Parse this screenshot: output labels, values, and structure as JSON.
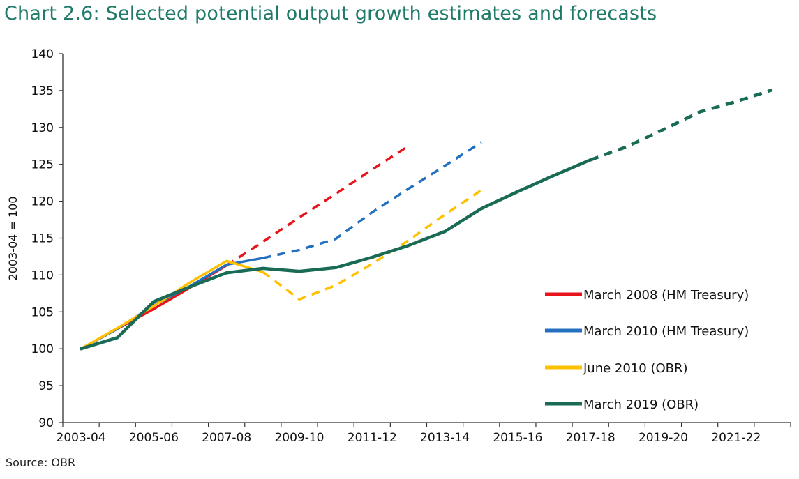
{
  "title": "Chart 2.6: Selected potential output growth estimates and forecasts",
  "source": "Source: OBR",
  "chart_data": {
    "type": "line",
    "title": "Chart 2.6: Selected potential output growth estimates and forecasts",
    "ylabel": "2003-04 = 100",
    "xlabel": "",
    "ylim": [
      90,
      140
    ],
    "yticks": [
      90,
      95,
      100,
      105,
      110,
      115,
      120,
      125,
      130,
      135,
      140
    ],
    "x_categories": [
      "2003-04",
      "2004-05",
      "2005-06",
      "2006-07",
      "2007-08",
      "2008-09",
      "2009-10",
      "2010-11",
      "2011-12",
      "2012-13",
      "2013-14",
      "2014-15",
      "2015-16",
      "2016-17",
      "2017-18",
      "2018-19",
      "2019-20",
      "2020-21",
      "2021-22",
      "2022-23"
    ],
    "x_tick_labels": [
      "2003-04",
      "2005-06",
      "2007-08",
      "2009-10",
      "2011-12",
      "2013-14",
      "2015-16",
      "2017-18",
      "2019-20",
      "2021-22"
    ],
    "legend_position": "bottom-right",
    "grid": false,
    "series": [
      {
        "name": "March 2008 (HM Treasury)",
        "color": "#e8141c",
        "solid": {
          "x": [
            "2003-04",
            "2004-05",
            "2005-06",
            "2006-07",
            "2007-08"
          ],
          "y": [
            100,
            102.7,
            105.4,
            108.3,
            111.3
          ]
        },
        "dashed": {
          "x": [
            "2007-08",
            "2008-09",
            "2009-10",
            "2010-11",
            "2011-12",
            "2012-13"
          ],
          "y": [
            111.3,
            114.5,
            117.8,
            121.0,
            124.3,
            127.5
          ]
        }
      },
      {
        "name": "March 2010 (HM Treasury)",
        "color": "#2470c0",
        "solid": {
          "x": [
            "2003-04",
            "2004-05",
            "2005-06",
            "2006-07",
            "2007-08",
            "2008-09"
          ],
          "y": [
            100,
            102.7,
            105.9,
            108.5,
            111.4,
            112.3
          ]
        },
        "dashed": {
          "x": [
            "2008-09",
            "2009-10",
            "2010-11",
            "2011-12",
            "2012-13",
            "2013-14",
            "2014-15"
          ],
          "y": [
            112.3,
            113.4,
            114.9,
            118.5,
            121.7,
            124.8,
            128.0
          ]
        }
      },
      {
        "name": "June 2010 (OBR)",
        "color": "#ffc000",
        "solid": {
          "x": [
            "2003-04",
            "2004-05",
            "2005-06",
            "2006-07",
            "2007-08",
            "2008-09"
          ],
          "y": [
            100,
            102.8,
            105.8,
            109.0,
            111.9,
            110.4
          ]
        },
        "dashed": {
          "x": [
            "2008-09",
            "2009-10",
            "2010-11",
            "2011-12",
            "2012-13",
            "2013-14",
            "2014-15"
          ],
          "y": [
            110.4,
            106.7,
            108.6,
            111.5,
            114.7,
            118.2,
            121.5
          ]
        }
      },
      {
        "name": "March 2019 (OBR)",
        "color": "#1a6b56",
        "solid": {
          "x": [
            "2003-04",
            "2004-05",
            "2005-06",
            "2006-07",
            "2007-08",
            "2008-09",
            "2009-10",
            "2010-11",
            "2011-12",
            "2012-13",
            "2013-14",
            "2014-15",
            "2015-16",
            "2016-17",
            "2017-18"
          ],
          "y": [
            100,
            101.5,
            106.4,
            108.4,
            110.3,
            110.9,
            110.5,
            111.0,
            112.4,
            114.0,
            115.9,
            119.0,
            121.3,
            123.5,
            125.6
          ]
        },
        "dashed": {
          "x": [
            "2017-18",
            "2018-19",
            "2019-20",
            "2020-21",
            "2021-22",
            "2022-23"
          ],
          "y": [
            125.6,
            127.4,
            129.7,
            132.1,
            133.5,
            135.1
          ]
        }
      }
    ]
  }
}
